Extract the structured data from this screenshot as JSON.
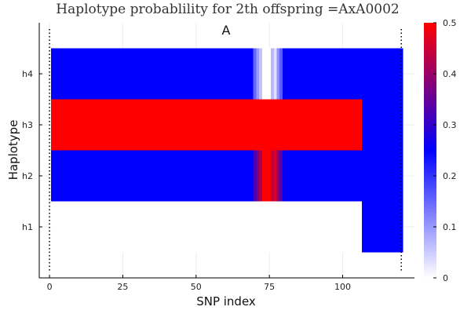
{
  "chart_data": {
    "type": "heatmap",
    "title": "Haplotype probablility for 2th offspring =AxA0002",
    "panel_label": "A",
    "xlabel": "SNP index",
    "ylabel": "Haplotype",
    "xlim": [
      -3.5,
      124.5
    ],
    "ylim": [
      0,
      5
    ],
    "x_ticks": [
      0,
      25,
      50,
      75,
      100
    ],
    "rows": [
      "h1",
      "h2",
      "h3",
      "h4"
    ],
    "colorbar": {
      "range": [
        0,
        0.5
      ],
      "ticks": [
        0,
        0.1,
        0.2,
        0.3,
        0.4,
        0.5
      ],
      "stops": [
        {
          "at": 0.0,
          "color": "#ffffff"
        },
        {
          "at": 0.5,
          "color": "#0000ff"
        },
        {
          "at": 1.0,
          "color": "#ff0000"
        }
      ]
    },
    "marker_lines_x": [
      0,
      120
    ],
    "cell_extent_x": [
      0.5,
      120.5
    ],
    "segments": [
      {
        "row": "h4",
        "x0": 0.5,
        "x1": 69.5,
        "value": 0.25
      },
      {
        "row": "h4",
        "x0": 69.5,
        "x1": 70.5,
        "value": 0.15
      },
      {
        "row": "h4",
        "x0": 70.5,
        "x1": 71.5,
        "value": 0.1
      },
      {
        "row": "h4",
        "x0": 71.5,
        "x1": 72.5,
        "value": 0.06
      },
      {
        "row": "h4",
        "x0": 72.5,
        "x1": 75.5,
        "value": 0.0
      },
      {
        "row": "h4",
        "x0": 75.5,
        "x1": 76.5,
        "value": 0.07
      },
      {
        "row": "h4",
        "x0": 76.5,
        "x1": 77.5,
        "value": 0.03
      },
      {
        "row": "h4",
        "x0": 77.5,
        "x1": 78.5,
        "value": 0.11
      },
      {
        "row": "h4",
        "x0": 78.5,
        "x1": 79.5,
        "value": 0.16
      },
      {
        "row": "h4",
        "x0": 79.5,
        "x1": 120.5,
        "value": 0.25
      },
      {
        "row": "h3",
        "x0": 0.5,
        "x1": 106.5,
        "value": 0.5
      },
      {
        "row": "h3",
        "x0": 106.5,
        "x1": 120.5,
        "value": 0.25
      },
      {
        "row": "h2",
        "x0": 0.5,
        "x1": 69.5,
        "value": 0.25
      },
      {
        "row": "h2",
        "x0": 69.5,
        "x1": 70.5,
        "value": 0.32
      },
      {
        "row": "h2",
        "x0": 70.5,
        "x1": 71.5,
        "value": 0.37
      },
      {
        "row": "h2",
        "x0": 71.5,
        "x1": 72.5,
        "value": 0.42
      },
      {
        "row": "h2",
        "x0": 72.5,
        "x1": 75.5,
        "value": 0.5
      },
      {
        "row": "h2",
        "x0": 75.5,
        "x1": 76.5,
        "value": 0.44
      },
      {
        "row": "h2",
        "x0": 76.5,
        "x1": 77.5,
        "value": 0.47
      },
      {
        "row": "h2",
        "x0": 77.5,
        "x1": 78.5,
        "value": 0.39
      },
      {
        "row": "h2",
        "x0": 78.5,
        "x1": 79.5,
        "value": 0.34
      },
      {
        "row": "h2",
        "x0": 79.5,
        "x1": 106.5,
        "value": 0.25
      },
      {
        "row": "h2",
        "x0": 106.5,
        "x1": 120.5,
        "value": 0.25
      },
      {
        "row": "h1",
        "x0": 0.5,
        "x1": 106.5,
        "value": 0.0
      },
      {
        "row": "h1",
        "x0": 106.5,
        "x1": 120.5,
        "value": 0.25
      }
    ],
    "h1_h4_low_region": {
      "x0": 106.5,
      "x1": 120.5
    }
  }
}
